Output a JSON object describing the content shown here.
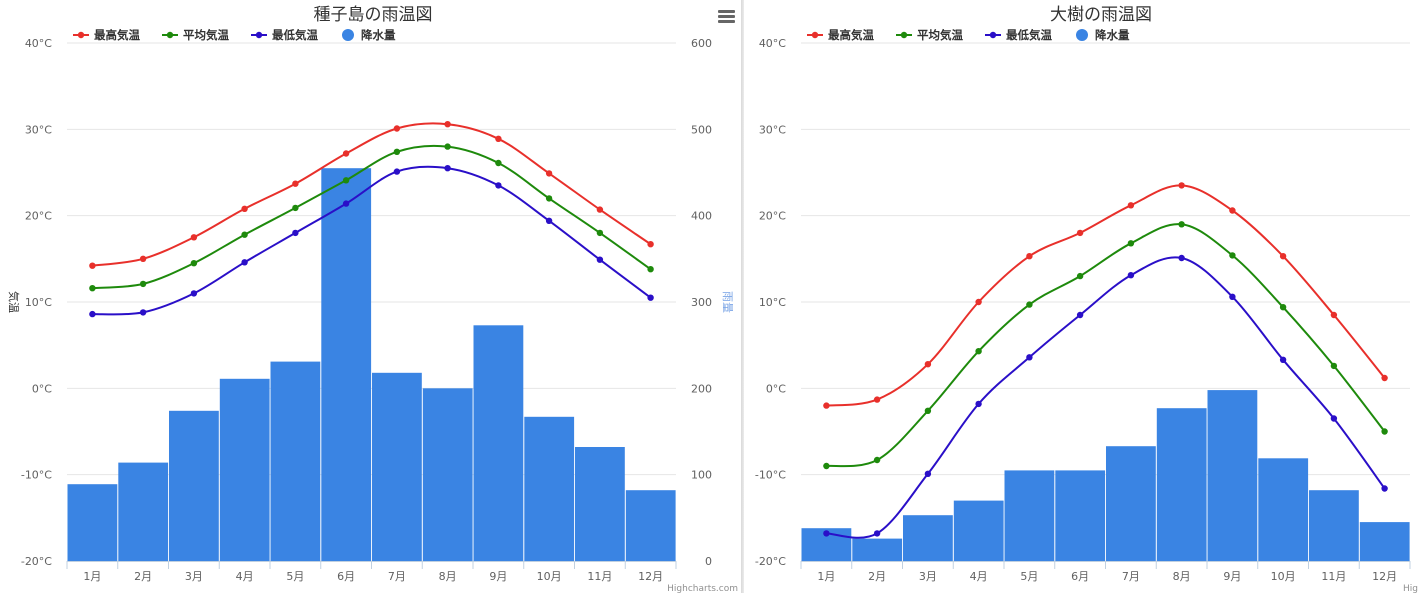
{
  "chart_data": [
    {
      "type": "bar+line",
      "title": "種子島の雨温図",
      "categories": [
        "1月",
        "2月",
        "3月",
        "4月",
        "5月",
        "6月",
        "7月",
        "8月",
        "9月",
        "10月",
        "11月",
        "12月"
      ],
      "temp_axis": {
        "title": "気温",
        "ylim": [
          -20,
          40
        ],
        "ticks": [
          "-20°C",
          "-10°C",
          "0°C",
          "10°C",
          "20°C",
          "30°C",
          "40°C"
        ]
      },
      "rain_axis": {
        "title": "雨量",
        "ylim": [
          0,
          600
        ],
        "ticks": [
          "0",
          "100",
          "200",
          "300",
          "400",
          "500",
          "600"
        ]
      },
      "series": [
        {
          "name": "最高気温",
          "type": "line",
          "color": "#e8302b",
          "values": [
            14.2,
            15.0,
            17.5,
            20.8,
            23.7,
            27.2,
            30.1,
            30.6,
            28.9,
            24.9,
            20.7,
            16.7
          ]
        },
        {
          "name": "平均気温",
          "type": "line",
          "color": "#1e8a0c",
          "values": [
            11.6,
            12.1,
            14.5,
            17.8,
            20.9,
            24.1,
            27.4,
            28.0,
            26.1,
            22.0,
            18.0,
            13.8
          ]
        },
        {
          "name": "最低気温",
          "type": "line",
          "color": "#2a0fc8",
          "values": [
            8.6,
            8.8,
            11.0,
            14.6,
            18.0,
            21.4,
            25.1,
            25.5,
            23.5,
            19.4,
            14.9,
            10.5
          ]
        },
        {
          "name": "降水量",
          "type": "column",
          "color": "#3a84e3",
          "values": [
            89,
            114,
            174,
            211,
            231,
            455,
            218,
            200,
            273,
            167,
            132,
            82
          ]
        }
      ],
      "grid": true,
      "legend": "top-left",
      "credit": "Highcharts.com",
      "menu_icon": "hamburger-menu-icon"
    },
    {
      "type": "bar+line",
      "title": "大樹の雨温図",
      "categories": [
        "1月",
        "2月",
        "3月",
        "4月",
        "5月",
        "6月",
        "7月",
        "8月",
        "9月",
        "10月",
        "11月",
        "12月"
      ],
      "temp_axis": {
        "title": "",
        "ylim": [
          -20,
          40
        ],
        "ticks": [
          "-20°C",
          "-10°C",
          "0°C",
          "10°C",
          "20°C",
          "30°C",
          "40°C"
        ]
      },
      "rain_axis": {
        "title": "",
        "ylim": [
          0,
          600
        ],
        "ticks": []
      },
      "series": [
        {
          "name": "最高気温",
          "type": "line",
          "color": "#e8302b",
          "values": [
            -2.0,
            -1.3,
            2.8,
            10.0,
            15.3,
            18.0,
            21.2,
            23.5,
            20.6,
            15.3,
            8.5,
            1.2
          ]
        },
        {
          "name": "平均気温",
          "type": "line",
          "color": "#1e8a0c",
          "values": [
            -9.0,
            -8.3,
            -2.6,
            4.3,
            9.7,
            13.0,
            16.8,
            19.0,
            15.4,
            9.4,
            2.6,
            -5.0
          ]
        },
        {
          "name": "最低気温",
          "type": "line",
          "color": "#2a0fc8",
          "values": [
            -16.8,
            -16.8,
            -9.9,
            -1.8,
            3.6,
            8.5,
            13.1,
            15.1,
            10.6,
            3.3,
            -3.5,
            -11.6
          ]
        },
        {
          "name": "降水量",
          "type": "column",
          "color": "#3a84e3",
          "values": [
            38,
            26,
            53,
            70,
            105,
            105,
            133,
            177,
            198,
            119,
            82,
            45
          ]
        }
      ],
      "grid": true,
      "legend": "top-left",
      "credit": "Hig"
    }
  ]
}
